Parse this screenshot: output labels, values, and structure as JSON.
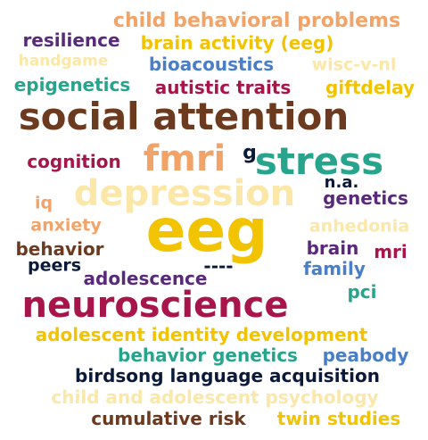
{
  "palette": {
    "brown": "#6b3a1f",
    "gold": "#f2c300",
    "light_gold": "#fbe7a8",
    "peach": "#f2a368",
    "teal": "#27a58c",
    "crimson": "#a8154a",
    "purple": "#5a2a7a",
    "blue": "#4a7fc8",
    "navy": "#0c1a3a"
  },
  "words": [
    {
      "id": "child-behavioral-problems",
      "text": "child behavioral problems",
      "color": "peach"
    },
    {
      "id": "resilience",
      "text": "resilience",
      "color": "purple"
    },
    {
      "id": "brain-activity-eeg",
      "text": "brain activity (eeg)",
      "color": "gold"
    },
    {
      "id": "handgame",
      "text": "handgame",
      "color": "light_gold"
    },
    {
      "id": "bioacoustics",
      "text": "bioacoustics",
      "color": "blue"
    },
    {
      "id": "wisc-v-nl",
      "text": "wisc-v-nl",
      "color": "light_gold"
    },
    {
      "id": "epigenetics",
      "text": "epigenetics",
      "color": "teal"
    },
    {
      "id": "autistic-traits",
      "text": "autistic traits",
      "color": "crimson"
    },
    {
      "id": "giftdelay",
      "text": "giftdelay",
      "color": "gold"
    },
    {
      "id": "social-attention",
      "text": "social attention",
      "color": "brown"
    },
    {
      "id": "cognition",
      "text": "cognition",
      "color": "crimson"
    },
    {
      "id": "fmri",
      "text": "fmri",
      "color": "peach"
    },
    {
      "id": "g",
      "text": "g",
      "color": "navy"
    },
    {
      "id": "stress",
      "text": "stress",
      "color": "teal"
    },
    {
      "id": "depression",
      "text": "depression",
      "color": "light_gold"
    },
    {
      "id": "na",
      "text": "n.a.",
      "color": "navy"
    },
    {
      "id": "iq",
      "text": "iq",
      "color": "peach"
    },
    {
      "id": "genetics",
      "text": "genetics",
      "color": "purple"
    },
    {
      "id": "anxiety",
      "text": "anxiety",
      "color": "peach"
    },
    {
      "id": "anhedonia",
      "text": "anhedonia",
      "color": "light_gold"
    },
    {
      "id": "eeg",
      "text": "eeg",
      "color": "gold"
    },
    {
      "id": "behavior",
      "text": "behavior",
      "color": "brown"
    },
    {
      "id": "brain",
      "text": "brain",
      "color": "purple"
    },
    {
      "id": "mri",
      "text": "mri",
      "color": "crimson"
    },
    {
      "id": "peers",
      "text": "peers",
      "color": "navy"
    },
    {
      "id": "family",
      "text": "family",
      "color": "blue"
    },
    {
      "id": "adolescence",
      "text": "adolescence",
      "color": "purple"
    },
    {
      "id": "dashes",
      "text": "----",
      "color": "navy"
    },
    {
      "id": "neuroscience",
      "text": "neuroscience",
      "color": "crimson"
    },
    {
      "id": "pci",
      "text": "pci",
      "color": "teal"
    },
    {
      "id": "adolescent-identity-development",
      "text": "adolescent identity development",
      "color": "gold"
    },
    {
      "id": "behavior-genetics",
      "text": "behavior genetics",
      "color": "teal"
    },
    {
      "id": "peabody",
      "text": "peabody",
      "color": "blue"
    },
    {
      "id": "birdsong-language-acquisition",
      "text": "birdsong language acquisition",
      "color": "navy"
    },
    {
      "id": "child-and-adolescent-psychology",
      "text": "child and adolescent psychology",
      "color": "light_gold"
    },
    {
      "id": "cumulative-risk",
      "text": "cumulative risk",
      "color": "brown"
    },
    {
      "id": "twin-studies",
      "text": "twin studies",
      "color": "gold"
    }
  ]
}
